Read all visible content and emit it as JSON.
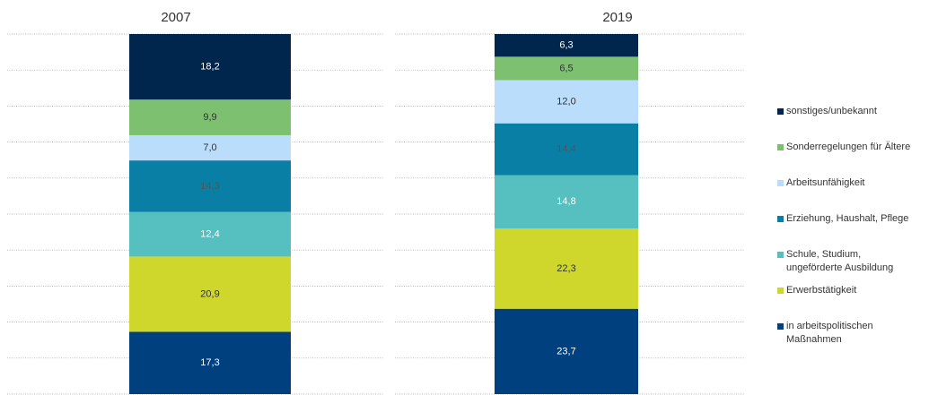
{
  "chart_data": {
    "type": "stacked-bar",
    "categories": [
      "2007",
      "2019"
    ],
    "ylim": [
      0,
      100
    ],
    "yticks": [
      0,
      10,
      20,
      30,
      40,
      50,
      60,
      70,
      80,
      90,
      100
    ],
    "grid": true,
    "series": [
      {
        "name": "in arbeitspolitischen\nMaßnahmen",
        "color": "#00407f",
        "label_color": "#ffffff",
        "values": [
          17.3,
          23.7
        ],
        "value_labels": [
          "17,3",
          "23,7"
        ]
      },
      {
        "name": "Erwerbstätigkeit",
        "color": "#cfd62c",
        "label_color": "#333333",
        "values": [
          20.9,
          22.3
        ],
        "value_labels": [
          "20,9",
          "22,3"
        ]
      },
      {
        "name": "Schule, Studium,\nungeförderte Ausbildung",
        "color": "#56bfbf",
        "label_color": "#ffffff",
        "values": [
          12.4,
          14.8
        ],
        "value_labels": [
          "12,4",
          "14,8"
        ]
      },
      {
        "name": "Erziehung, Haushalt, Pflege",
        "color": "#0a7fa5",
        "label_color": "#555555",
        "values": [
          14.3,
          14.4
        ],
        "value_labels": [
          "14,3",
          "14,4"
        ]
      },
      {
        "name": "Arbeitsunfähigkeit",
        "color": "#b9ddfb",
        "label_color": "#333333",
        "values": [
          7.0,
          12.0
        ],
        "value_labels": [
          "7,0",
          "12,0"
        ]
      },
      {
        "name": "Sonderregelungen für Ältere",
        "color": "#7dc06f",
        "label_color": "#333333",
        "values": [
          9.9,
          6.5
        ],
        "value_labels": [
          "9,9",
          "6,5"
        ]
      },
      {
        "name": "sonstiges/unbekannt",
        "color": "#00264d",
        "label_color": "#ffffff",
        "values": [
          18.2,
          6.3
        ],
        "value_labels": [
          "18,2",
          "6,3"
        ]
      }
    ]
  }
}
